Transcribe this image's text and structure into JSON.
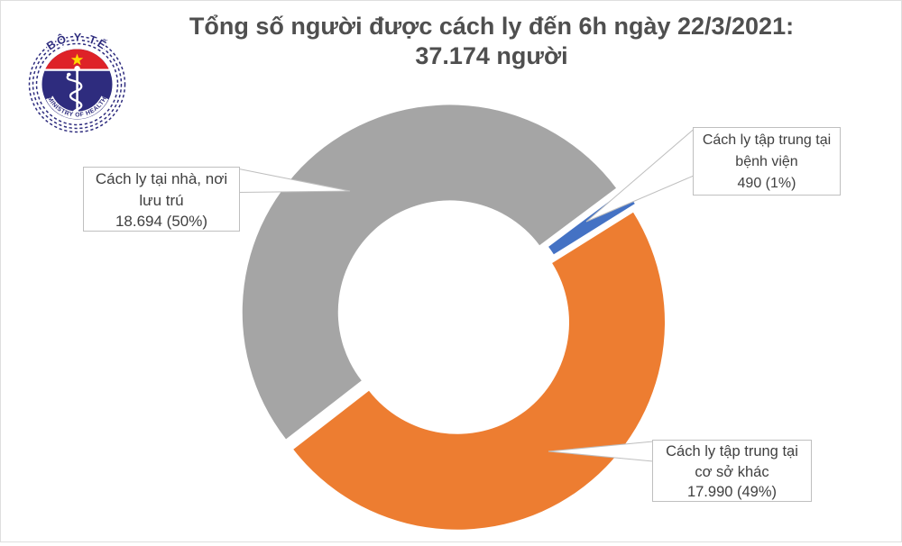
{
  "header": {
    "title_line1": "Tổng số người được cách ly đến 6h ngày 22/3/2021:",
    "title_line2": "37.174 người",
    "title_color": "#4f4f4f"
  },
  "logo": {
    "name": "Bộ Y Tế - Ministry of Health emblem",
    "top_text": "BỘ Y TẾ",
    "bottom_text": "MINISTRY OF HEALTH",
    "navy": "#2e2c7e",
    "red": "#de2228",
    "star_yellow": "#ffd900"
  },
  "chart_data": {
    "type": "pie",
    "subtype": "donut",
    "title": "Tổng số người được cách ly đến 6h ngày 22/3/2021: 37.174 người",
    "total": 37174,
    "unit": "người",
    "categories": [
      "Cách ly tại nhà, nơi lưu trú",
      "Cách ly tập trung tại bệnh viện",
      "Cách ly tập trung tại cơ sở khác"
    ],
    "series": [
      {
        "name": "Cách ly tại nhà, nơi lưu trú",
        "value": 18694,
        "percent": 50,
        "color": "#a5a5a5"
      },
      {
        "name": "Cách ly tập trung tại bệnh viện",
        "value": 490,
        "percent": 1,
        "color": "#4472c4"
      },
      {
        "name": "Cách ly tập trung tại cơ sở khác",
        "value": 17990,
        "percent": 49,
        "color": "#ed7d31"
      }
    ],
    "start_angle_deg": 232.2,
    "clockwise": true,
    "donut_hole_ratio": 0.54,
    "exploded": true,
    "legend": "none",
    "labels_as_callouts": true,
    "callout_border_color": "#bfbfbf"
  },
  "callouts": {
    "home": {
      "line1": "Cách ly tại nhà, nơi",
      "line2": "lưu trú",
      "line3": "18.694 (50%)"
    },
    "hospital": {
      "line1": "Cách ly tập trung tại",
      "line2": "bệnh viện",
      "line3": "490 (1%)"
    },
    "other": {
      "line1": "Cách ly tập trung tại",
      "line2": "cơ sở khác",
      "line3": "17.990 (49%)"
    }
  }
}
